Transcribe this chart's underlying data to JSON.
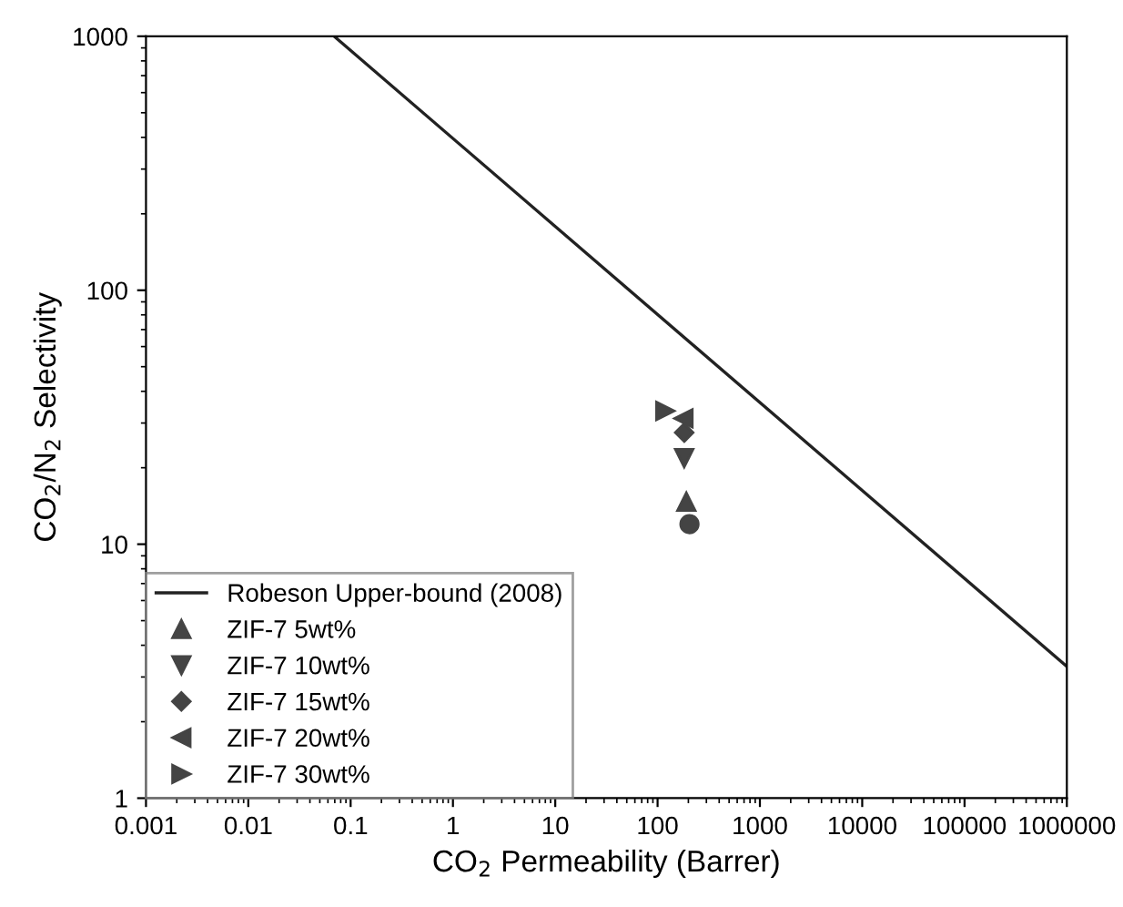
{
  "chart_data": {
    "type": "scatter",
    "xlabel": "CO$_{2}$ Permeability (Barrer)",
    "ylabel": "CO$_{2}$/N$_{2}$ Selectivity",
    "log": "xy",
    "xlim": [
      0.001,
      1000000
    ],
    "ylim": [
      1,
      1000
    ],
    "xticks": [
      0.001,
      0.01,
      0.1,
      1,
      10,
      100,
      1000,
      10000,
      100000,
      1000000
    ],
    "yticks": [
      1,
      10,
      100,
      1000
    ],
    "legend": "bottom left",
    "grid": false,
    "series": [
      {
        "name": "Robeson Upper-bound (2008)",
        "type": "line",
        "color": "#222222",
        "marker": "none",
        "line_style": "solid",
        "x": [
          0.069,
          1000000
        ],
        "values": [
          1000,
          3.3
        ]
      },
      {
        "color": "#444444",
        "marker": "circle",
        "x": [
          205
        ],
        "values": [
          12.0
        ]
      },
      {
        "name": "ZIF-7 5wt%",
        "color": "#444444",
        "marker": "triangle",
        "x": [
          191
        ],
        "values": [
          14.7
        ]
      },
      {
        "name": "ZIF-7 10wt%",
        "color": "#444444",
        "marker": "triangle_down",
        "x": [
          182
        ],
        "values": [
          21.8
        ]
      },
      {
        "name": "ZIF-7 15wt%",
        "color": "#444444",
        "marker": "diamond",
        "x": [
          182
        ],
        "values": [
          27.5
        ]
      },
      {
        "name": "ZIF-7 20wt%",
        "color": "#444444",
        "marker": "triangle_left",
        "x": [
          179
        ],
        "values": [
          31.3
        ]
      },
      {
        "name": "ZIF-7 30wt%",
        "color": "#444444",
        "marker": "triangle_right",
        "x": [
          119
        ],
        "values": [
          33.5
        ]
      }
    ]
  }
}
